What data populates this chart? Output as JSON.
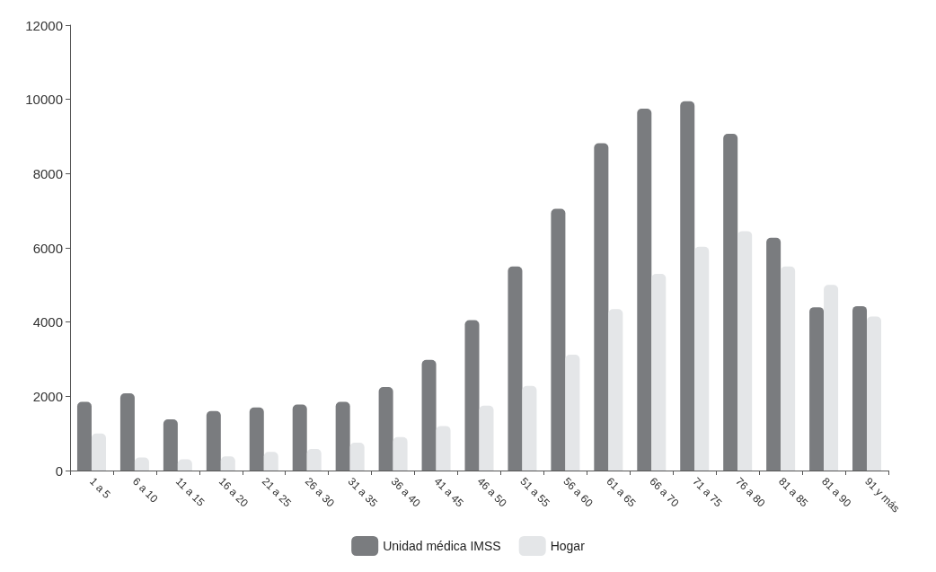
{
  "chart_data": {
    "type": "bar",
    "categories": [
      "1 a 5",
      "6 a 10",
      "11 a 15",
      "16 a 20",
      "21 a 25",
      "26 a 30",
      "31 a 35",
      "36 a 40",
      "41 a 45",
      "46 a 50",
      "51 a 55",
      "56 a 60",
      "61 a 65",
      "66 a 70",
      "71 a 75",
      "76 a 80",
      "81 a 85",
      "81 a 90",
      "91 y más"
    ],
    "series": [
      {
        "name": "Unidad médica IMSS",
        "color": "#7a7c7f",
        "values": [
          1850,
          2080,
          1380,
          1600,
          1700,
          1780,
          1850,
          2250,
          2980,
          4050,
          5500,
          7050,
          8820,
          9750,
          9950,
          9070,
          6270,
          4400,
          4430
        ]
      },
      {
        "name": "Hogar",
        "color": "#e4e6e8",
        "values": [
          1000,
          350,
          300,
          380,
          500,
          580,
          750,
          900,
          1200,
          1750,
          2280,
          3120,
          4350,
          5300,
          6030,
          6450,
          5500,
          5000,
          4150
        ]
      }
    ],
    "ylim": [
      0,
      12000
    ],
    "yticks": [
      0,
      2000,
      4000,
      6000,
      8000,
      10000,
      12000
    ],
    "grid": false,
    "legend": "bottom"
  }
}
